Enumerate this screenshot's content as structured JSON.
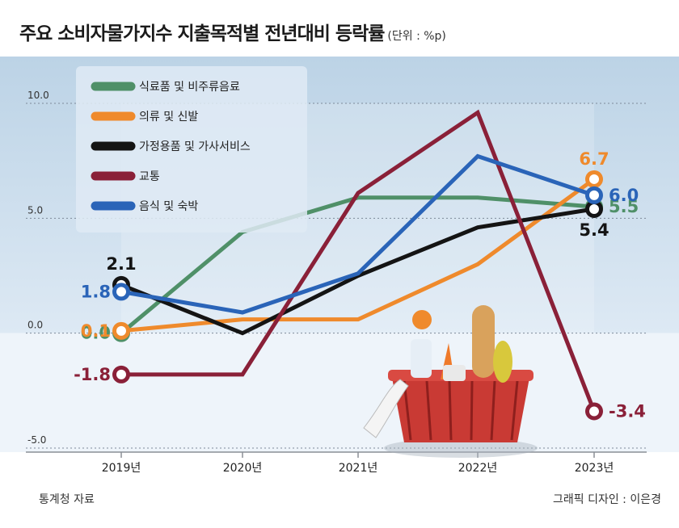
{
  "header": {
    "title": "주요 소비자물가지수 지출목적별 전년대비 등락률",
    "unit": "(단위 : %p)"
  },
  "footer": {
    "source": "통계청 자료",
    "credit": "그래픽 디자인 : 이은경"
  },
  "colors": {
    "background_top": "#bcd3e6",
    "background_bottom": "#eef4fa",
    "baseline": "#8a8f96"
  },
  "chart_data": {
    "type": "line",
    "x": [
      "2019년",
      "2020년",
      "2021년",
      "2022년",
      "2023년"
    ],
    "ylim": [
      -5.0,
      10.0
    ],
    "yticks": [
      "10.0",
      "5.0",
      "0.0",
      "-5.0"
    ],
    "grid": true,
    "legend_position": "top-left",
    "series": [
      {
        "name": "식료품 및 비주류음료",
        "color": "#4f9068",
        "values": [
          0.0,
          4.4,
          5.9,
          5.9,
          5.5
        ],
        "labels": [
          "0.0",
          null,
          null,
          null,
          "5.5"
        ]
      },
      {
        "name": "의류 및 신발",
        "color": "#ef8a2c",
        "values": [
          0.1,
          0.6,
          0.6,
          3.0,
          6.7
        ],
        "labels": [
          "0.1",
          null,
          null,
          null,
          "6.7"
        ]
      },
      {
        "name": "가정용품 및 가사서비스",
        "color": "#141414",
        "values": [
          2.1,
          0.0,
          2.5,
          4.6,
          5.4
        ],
        "labels": [
          "2.1",
          null,
          null,
          null,
          "5.4"
        ]
      },
      {
        "name": "교통",
        "color": "#8a2038",
        "values": [
          -1.8,
          -1.8,
          6.1,
          9.6,
          -3.4
        ],
        "labels": [
          "-1.8",
          null,
          null,
          null,
          "-3.4"
        ]
      },
      {
        "name": "음식 및 숙박",
        "color": "#2a64b8",
        "values": [
          1.8,
          0.9,
          2.6,
          7.7,
          6.0
        ],
        "labels": [
          "1.8",
          null,
          null,
          null,
          "6.0"
        ]
      }
    ]
  }
}
